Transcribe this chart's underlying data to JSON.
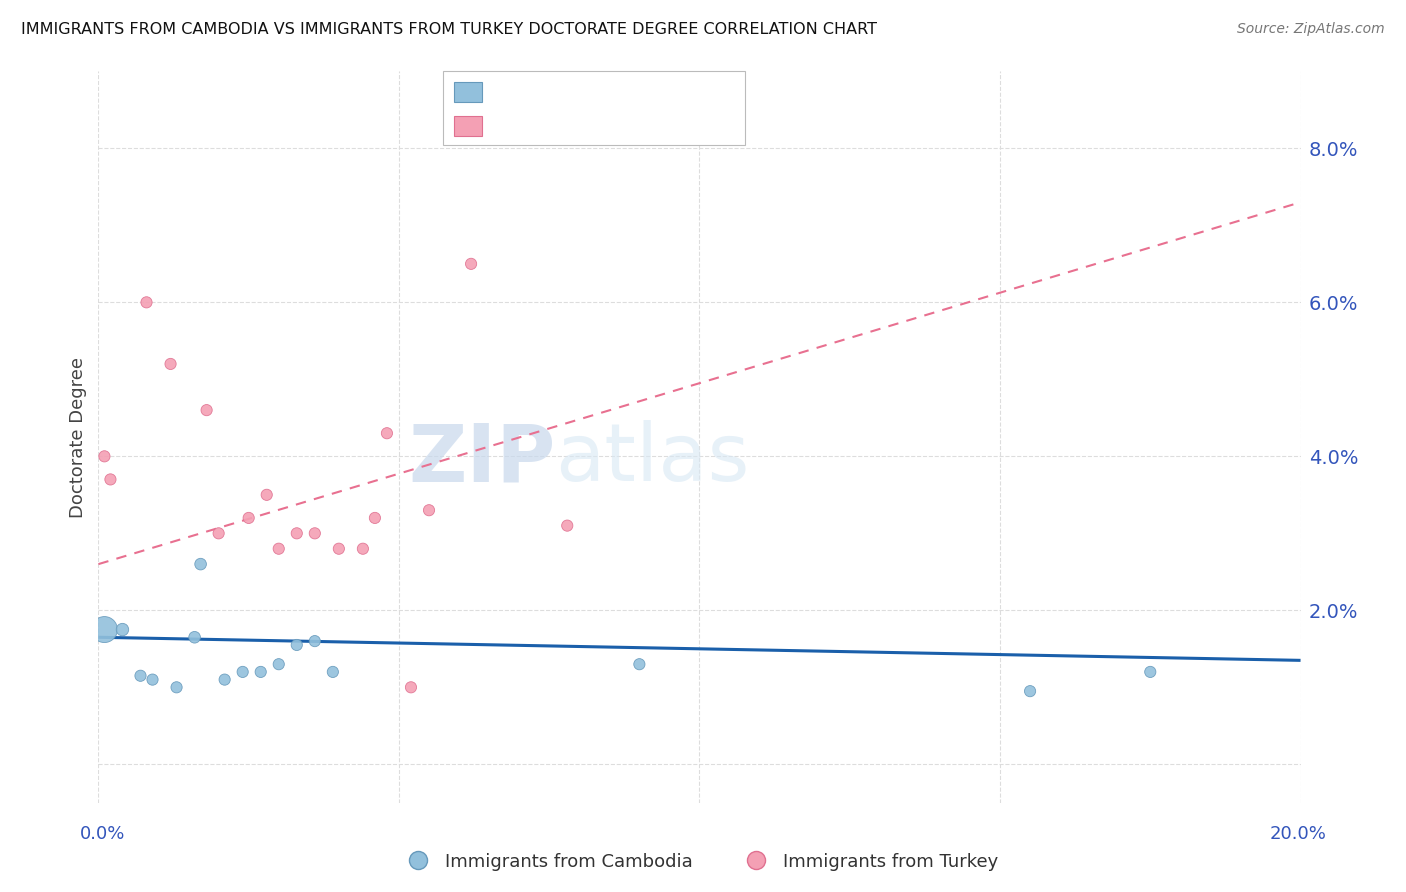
{
  "title": "IMMIGRANTS FROM CAMBODIA VS IMMIGRANTS FROM TURKEY DOCTORATE DEGREE CORRELATION CHART",
  "source": "Source: ZipAtlas.com",
  "ylabel": "Doctorate Degree",
  "right_yticklabels": [
    "2.0%",
    "4.0%",
    "6.0%",
    "8.0%"
  ],
  "right_yticks": [
    0.02,
    0.04,
    0.06,
    0.08
  ],
  "xlim": [
    0.0,
    0.2
  ],
  "ylim": [
    -0.005,
    0.09
  ],
  "watermark_zip": "ZIP",
  "watermark_atlas": "atlas",
  "cambodia_x": [
    0.001,
    0.004,
    0.007,
    0.009,
    0.013,
    0.016,
    0.017,
    0.021,
    0.024,
    0.027,
    0.03,
    0.033,
    0.036,
    0.039,
    0.09,
    0.155,
    0.175
  ],
  "cambodia_y": [
    0.0175,
    0.0175,
    0.0115,
    0.011,
    0.01,
    0.0165,
    0.026,
    0.011,
    0.012,
    0.012,
    0.013,
    0.0155,
    0.016,
    0.012,
    0.013,
    0.0095,
    0.012
  ],
  "cambodia_sizes": [
    350,
    80,
    65,
    65,
    65,
    70,
    70,
    65,
    65,
    65,
    65,
    65,
    65,
    65,
    65,
    65,
    65
  ],
  "turkey_x": [
    0.001,
    0.002,
    0.008,
    0.012,
    0.018,
    0.02,
    0.025,
    0.028,
    0.03,
    0.033,
    0.036,
    0.04,
    0.044,
    0.046,
    0.048,
    0.052,
    0.055,
    0.062,
    0.078
  ],
  "turkey_y": [
    0.04,
    0.037,
    0.06,
    0.052,
    0.046,
    0.03,
    0.032,
    0.035,
    0.028,
    0.03,
    0.03,
    0.028,
    0.028,
    0.032,
    0.043,
    0.01,
    0.033,
    0.065,
    0.031
  ],
  "turkey_sizes": [
    65,
    65,
    65,
    65,
    65,
    65,
    65,
    65,
    65,
    65,
    65,
    65,
    65,
    65,
    65,
    65,
    65,
    65,
    65
  ],
  "cambodia_color": "#92C0DC",
  "turkey_color": "#F4A0B4",
  "cambodia_edge": "#6699BB",
  "turkey_edge": "#E07090",
  "trend_cambodia_color": "#1A5FAA",
  "trend_turkey_color": "#E87090",
  "trend_cambodia_start_y": 0.0165,
  "trend_cambodia_end_y": 0.0135,
  "trend_turkey_start_y": 0.026,
  "trend_turkey_end_y": 0.073,
  "background_color": "#ffffff",
  "grid_color": "#dddddd",
  "title_color": "#111111",
  "axis_label_color": "#3355BB",
  "source_color": "#777777"
}
